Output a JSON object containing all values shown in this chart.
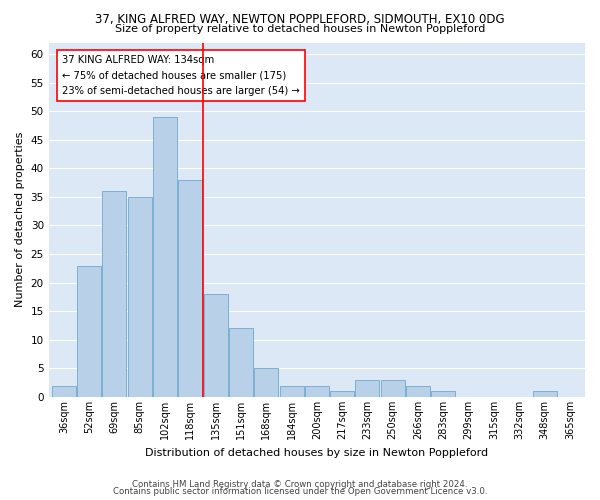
{
  "title": "37, KING ALFRED WAY, NEWTON POPPLEFORD, SIDMOUTH, EX10 0DG",
  "subtitle": "Size of property relative to detached houses in Newton Poppleford",
  "xlabel": "Distribution of detached houses by size in Newton Poppleford",
  "ylabel": "Number of detached properties",
  "bar_color": "#b8d0e8",
  "bar_edge_color": "#7aafd4",
  "background_color": "#dce8f5",
  "categories": [
    "36sqm",
    "52sqm",
    "69sqm",
    "85sqm",
    "102sqm",
    "118sqm",
    "135sqm",
    "151sqm",
    "168sqm",
    "184sqm",
    "200sqm",
    "217sqm",
    "233sqm",
    "250sqm",
    "266sqm",
    "283sqm",
    "299sqm",
    "315sqm",
    "332sqm",
    "348sqm",
    "365sqm"
  ],
  "values": [
    2,
    23,
    36,
    35,
    49,
    38,
    18,
    12,
    5,
    2,
    2,
    1,
    3,
    3,
    2,
    1,
    0,
    0,
    0,
    1,
    0
  ],
  "annotation_line1": "37 KING ALFRED WAY: 134sqm",
  "annotation_line2": "← 75% of detached houses are smaller (175)",
  "annotation_line3": "23% of semi-detached houses are larger (54) →",
  "red_line_x": 5.5,
  "ylim": [
    0,
    62
  ],
  "yticks": [
    0,
    5,
    10,
    15,
    20,
    25,
    30,
    35,
    40,
    45,
    50,
    55,
    60
  ],
  "footnote1": "Contains HM Land Registry data © Crown copyright and database right 2024.",
  "footnote2": "Contains public sector information licensed under the Open Government Licence v3.0."
}
